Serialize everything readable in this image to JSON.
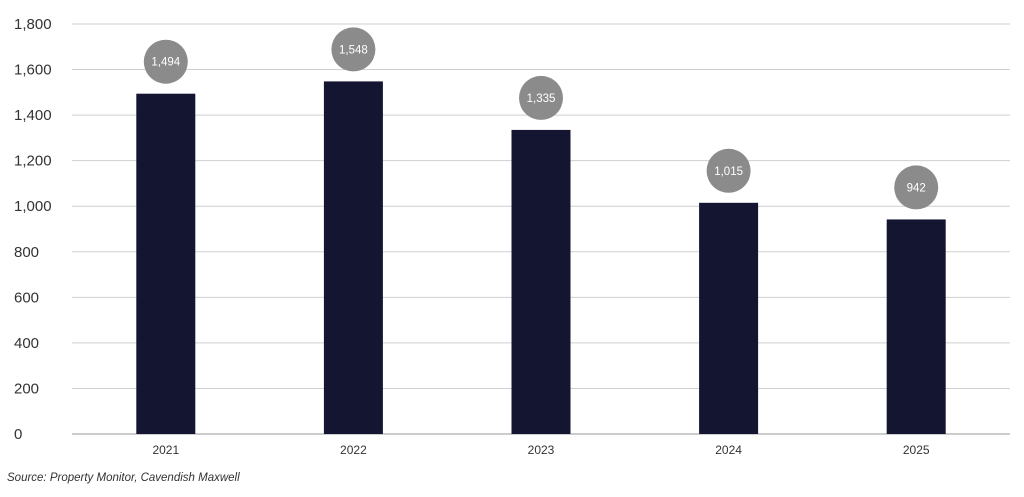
{
  "chart_data": {
    "type": "bar",
    "categories": [
      "2021",
      "2022",
      "2023",
      "2024",
      "2025"
    ],
    "values": [
      1494,
      1548,
      1335,
      1015,
      942
    ],
    "data_labels": [
      "1,494",
      "1,548",
      "1,335",
      "1,015",
      "942"
    ],
    "ylim": [
      0,
      1800
    ],
    "yticks": [
      0,
      200,
      400,
      600,
      800,
      1000,
      1200,
      1400,
      1600,
      1800
    ],
    "ytick_labels": [
      "0",
      "200",
      "400",
      "600",
      "800",
      "1,000",
      "1,200",
      "1,400",
      "1,600",
      "1,800"
    ],
    "grid": true,
    "legend": "none",
    "title": "",
    "xlabel": "",
    "ylabel": ""
  },
  "source_text": "Source: Property Monitor, Cavendish Maxwell",
  "colors": {
    "bar": "#141530",
    "label_bubble": "#8c8b8b",
    "gridline": "#cfcfcf",
    "axis_line": "#9a9a9a",
    "text": "#333333"
  }
}
